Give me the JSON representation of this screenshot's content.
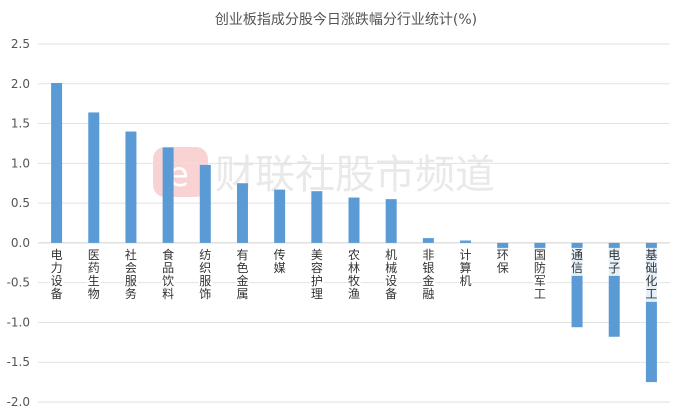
{
  "chart_data": {
    "type": "bar",
    "title": "创业板指成分股今日涨跌幅分行业统计(%)",
    "categories": [
      "电力设备",
      "医药生物",
      "社会服务",
      "食品饮料",
      "纺织服饰",
      "有色金属",
      "传媒",
      "美容护理",
      "农林牧渔",
      "机械设备",
      "非银金融",
      "计算机",
      "环保",
      "国防军工",
      "通信",
      "电子",
      "基础化工"
    ],
    "values": [
      2.01,
      1.64,
      1.4,
      1.2,
      0.98,
      0.75,
      0.67,
      0.65,
      0.57,
      0.55,
      0.06,
      0.03,
      -0.09,
      -0.09,
      -1.06,
      -1.18,
      -1.75
    ],
    "ylim": [
      -2.0,
      2.5
    ],
    "yticks": [
      "2.5",
      "2.0",
      "1.5",
      "1.0",
      "0.5",
      "0.0",
      "-0.5",
      "-1.0",
      "-1.5",
      "-2.0"
    ],
    "grid": true,
    "bar_color": "#5b9bd5"
  },
  "watermark": {
    "text": "财联社股市频道",
    "logo_color": "#f7c6c6"
  }
}
